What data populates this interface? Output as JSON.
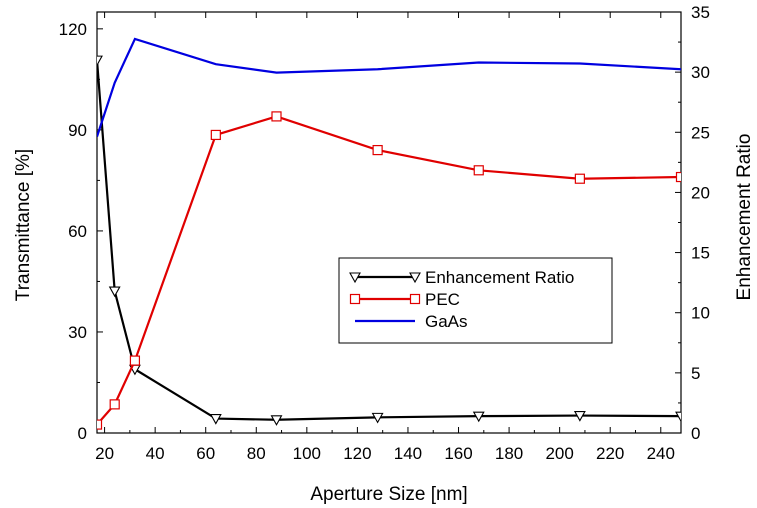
{
  "chart_data": {
    "type": "line",
    "xlabel": "Aperture Size [nm]",
    "ylabel": "Transmittance [%]",
    "y2label": "Enhancement Ratio",
    "xlim": [
      17,
      248
    ],
    "ylim": [
      0,
      125
    ],
    "y2lim": [
      0,
      35
    ],
    "xticks": [
      20,
      40,
      60,
      80,
      100,
      120,
      140,
      160,
      180,
      200,
      220,
      240
    ],
    "yticks": [
      0,
      30,
      60,
      90,
      120
    ],
    "y2ticks": [
      0,
      5,
      10,
      15,
      20,
      25,
      30,
      35
    ],
    "legend_position": "center-right",
    "series": [
      {
        "name": "Enhancement Ratio",
        "axis": "right",
        "color": "#000000",
        "marker": "triangle-down",
        "x": [
          17,
          24,
          32,
          64,
          88,
          128,
          168,
          208,
          248
        ],
        "y": [
          31.0,
          11.8,
          5.3,
          1.2,
          1.1,
          1.3,
          1.4,
          1.45,
          1.4
        ]
      },
      {
        "name": "PEC",
        "axis": "left",
        "color": "#e00000",
        "marker": "square",
        "x": [
          17,
          24,
          32,
          64,
          88,
          128,
          168,
          208,
          248
        ],
        "y": [
          2.5,
          8.5,
          21.5,
          88.5,
          94.0,
          84.0,
          78.0,
          75.5,
          76.0
        ]
      },
      {
        "name": "GaAs",
        "axis": "left",
        "color": "#0000e0",
        "marker": "none",
        "x": [
          17,
          24,
          32,
          64,
          88,
          128,
          168,
          208,
          248
        ],
        "y": [
          88.0,
          104.0,
          117.0,
          109.5,
          107.0,
          108.0,
          110.0,
          109.7,
          108.0
        ]
      }
    ]
  }
}
